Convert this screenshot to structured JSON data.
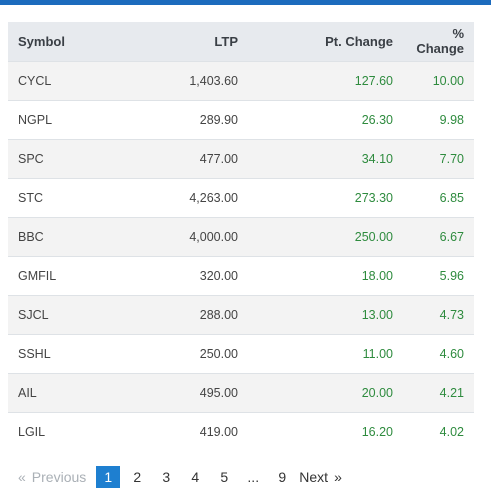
{
  "table": {
    "headers": [
      "Symbol",
      "LTP",
      "Pt. Change",
      "% Change"
    ],
    "rows": [
      [
        "CYCL",
        "1,403.60",
        "127.60",
        "10.00"
      ],
      [
        "NGPL",
        "289.90",
        "26.30",
        "9.98"
      ],
      [
        "SPC",
        "477.00",
        "34.10",
        "7.70"
      ],
      [
        "STC",
        "4,263.00",
        "273.30",
        "6.85"
      ],
      [
        "BBC",
        "4,000.00",
        "250.00",
        "6.67"
      ],
      [
        "GMFIL",
        "320.00",
        "18.00",
        "5.96"
      ],
      [
        "SJCL",
        "288.00",
        "13.00",
        "4.73"
      ],
      [
        "SSHL",
        "250.00",
        "11.00",
        "4.60"
      ],
      [
        "AIL",
        "495.00",
        "20.00",
        "4.21"
      ],
      [
        "LGIL",
        "419.00",
        "16.20",
        "4.02"
      ]
    ]
  },
  "pagination": {
    "prev_arrow": "«",
    "previous": "Previous",
    "pages": [
      "1",
      "2",
      "3",
      "4",
      "5",
      "...",
      "9"
    ],
    "active_page": "1",
    "next": "Next",
    "next_arrow": "»"
  },
  "colors": {
    "accent": "#1c6bbd",
    "positive": "#2e8b3e",
    "active_page_bg": "#1e7fd0"
  }
}
